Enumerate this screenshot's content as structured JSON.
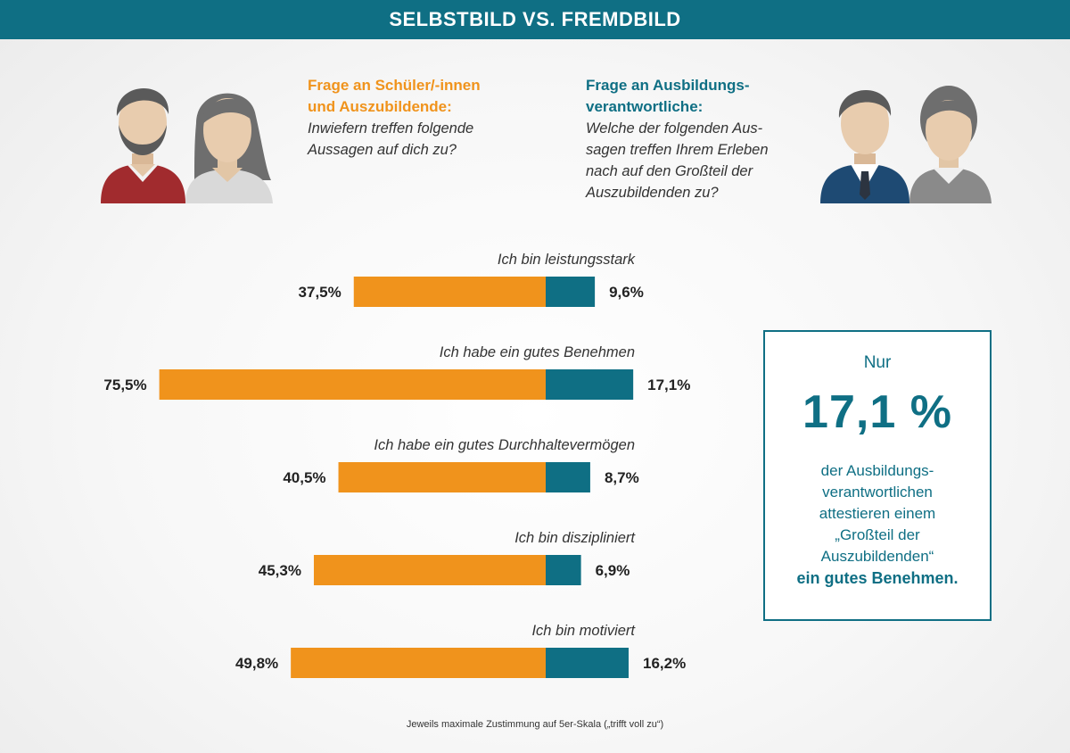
{
  "header": {
    "title": "SELBSTBILD VS. FREMDBILD"
  },
  "question_left": {
    "title_lines": [
      "Frage an Schüler/-innen",
      "und Auszubildende:"
    ],
    "text_lines": [
      "Inwiefern treffen folgende",
      "Aussagen auf dich zu?"
    ]
  },
  "question_right": {
    "title_lines": [
      "Frage an Ausbildungs-",
      "verantwortliche:"
    ],
    "text_lines": [
      "Welche der folgenden Aus-",
      "sagen treffen Ihrem Erleben",
      "nach auf den Großteil der",
      "Auszubildenden zu?"
    ]
  },
  "colors": {
    "header": "#0f6f84",
    "schueler": "#f0931c",
    "ausbildung": "#0f6f84"
  },
  "icons": {
    "left": "student-people-icon",
    "right": "trainer-people-icon"
  },
  "chart_data": {
    "type": "bar",
    "orientation": "horizontal-diverging",
    "categories": [
      "Ich bin leistungsstark",
      "Ich habe ein gutes Benehmen",
      "Ich habe ein gutes Durchhaltevermögen",
      "Ich bin diszipliniert",
      "Ich bin motiviert"
    ],
    "series": [
      {
        "values": [
          37.5,
          75.5,
          40.5,
          45.3,
          49.8
        ],
        "labels": [
          "37,5%",
          "75,5%",
          "40,5%",
          "45,3%",
          "49,8%"
        ],
        "color": "#f0931c"
      },
      {
        "values": [
          9.6,
          17.1,
          8.7,
          6.9,
          16.2
        ],
        "labels": [
          "9,6%",
          "17,1%",
          "8,7%",
          "6,9%",
          "16,2%"
        ],
        "color": "#0f6f84"
      }
    ],
    "unit": "%",
    "title": "",
    "xlabel": "",
    "ylabel": "",
    "grid": false
  },
  "callout": {
    "intro": "Nur",
    "value": "17,1 %",
    "text_lines": [
      "der Ausbildungs-",
      "verantwortlichen",
      "attestieren einem",
      "„Großteil der",
      "Auszubildenden“"
    ],
    "bold_line": "ein gutes Benehmen."
  },
  "footnote": "Jeweils maximale Zustimmung auf 5er-Skala („trifft voll zu“)"
}
